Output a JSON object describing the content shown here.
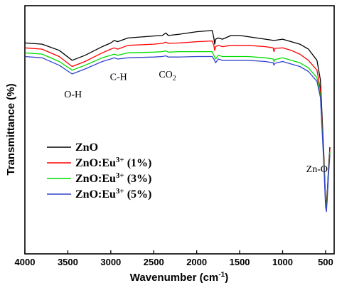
{
  "chart_data": {
    "type": "line",
    "xlabel": "Wavenumber (cm",
    "xlabel_sup": "-1",
    "xlabel_tail": ")",
    "ylabel": "Transmittance (%)",
    "x_reversed": true,
    "xlim": [
      4000,
      400
    ],
    "ylim": [
      0,
      100
    ],
    "xticks": [
      4000,
      3500,
      3000,
      2500,
      2000,
      1500,
      1000,
      500
    ],
    "y_tick_labels": false,
    "grid": false,
    "legend_position": "left-middle",
    "annotations": [
      {
        "text": "O-H",
        "x": 3440,
        "y": 63
      },
      {
        "text": "C-H",
        "x": 2910,
        "y": 70
      },
      {
        "text": "CO",
        "sub": "2",
        "x": 2340,
        "y": 71
      },
      {
        "text": "Zn-O",
        "x": 600,
        "y": 33
      }
    ],
    "series": [
      {
        "name": "ZnO",
        "legend_base": "ZnO",
        "legend_sup": "",
        "legend_tail": "",
        "color": "#000000",
        "points": [
          [
            4000,
            85
          ],
          [
            3800,
            84.5
          ],
          [
            3600,
            82
          ],
          [
            3450,
            78
          ],
          [
            3300,
            80
          ],
          [
            3100,
            83.5
          ],
          [
            3000,
            85
          ],
          [
            2960,
            86
          ],
          [
            2920,
            85.5
          ],
          [
            2800,
            87
          ],
          [
            2500,
            87.8
          ],
          [
            2400,
            88
          ],
          [
            2360,
            89
          ],
          [
            2330,
            88
          ],
          [
            2200,
            88.5
          ],
          [
            2000,
            89.5
          ],
          [
            1820,
            90
          ],
          [
            1800,
            87
          ],
          [
            1790,
            84.5
          ],
          [
            1780,
            86.5
          ],
          [
            1750,
            87
          ],
          [
            1700,
            86.5
          ],
          [
            1600,
            88
          ],
          [
            1500,
            88
          ],
          [
            1400,
            87.5
          ],
          [
            1200,
            86.5
          ],
          [
            1100,
            86
          ],
          [
            1000,
            86.5
          ],
          [
            900,
            85.5
          ],
          [
            800,
            84.5
          ],
          [
            700,
            82.5
          ],
          [
            600,
            78
          ],
          [
            560,
            70
          ],
          [
            520,
            40
          ],
          [
            500,
            22
          ],
          [
            490,
            20
          ],
          [
            480,
            25
          ],
          [
            465,
            35
          ],
          [
            450,
            43
          ]
        ]
      },
      {
        "name": "ZnO:Eu3+ (1%)",
        "legend_base": "ZnO:Eu",
        "legend_sup": "3+",
        "legend_tail": " (1%)",
        "color": "#ff0000",
        "points": [
          [
            4000,
            83
          ],
          [
            3800,
            82.5
          ],
          [
            3600,
            79.5
          ],
          [
            3450,
            75.5
          ],
          [
            3300,
            77.5
          ],
          [
            3100,
            81
          ],
          [
            3000,
            82.5
          ],
          [
            2960,
            83
          ],
          [
            2920,
            82.5
          ],
          [
            2800,
            84
          ],
          [
            2500,
            84.5
          ],
          [
            2400,
            84.8
          ],
          [
            2360,
            85.3
          ],
          [
            2330,
            84.8
          ],
          [
            2200,
            85
          ],
          [
            2000,
            85.5
          ],
          [
            1820,
            85.8
          ],
          [
            1800,
            84
          ],
          [
            1790,
            82
          ],
          [
            1780,
            83.5
          ],
          [
            1750,
            84
          ],
          [
            1700,
            83.5
          ],
          [
            1600,
            84
          ],
          [
            1500,
            84
          ],
          [
            1400,
            84
          ],
          [
            1200,
            83.5
          ],
          [
            1110,
            83
          ],
          [
            1100,
            81.5
          ],
          [
            1090,
            82.8
          ],
          [
            1000,
            83
          ],
          [
            900,
            82
          ],
          [
            800,
            80.5
          ],
          [
            700,
            78
          ],
          [
            600,
            74
          ],
          [
            560,
            66
          ],
          [
            520,
            38
          ],
          [
            500,
            21
          ],
          [
            490,
            19
          ],
          [
            480,
            24
          ],
          [
            465,
            34
          ],
          [
            450,
            42
          ]
        ]
      },
      {
        "name": "ZnO:Eu3+ (3%)",
        "legend_base": "ZnO:Eu",
        "legend_sup": "3+",
        "legend_tail": " (3%)",
        "color": "#00dd00",
        "points": [
          [
            4000,
            81
          ],
          [
            3800,
            80.5
          ],
          [
            3600,
            77.5
          ],
          [
            3450,
            74
          ],
          [
            3300,
            76
          ],
          [
            3100,
            79
          ],
          [
            3000,
            80
          ],
          [
            2960,
            80.5
          ],
          [
            2920,
            80
          ],
          [
            2800,
            81
          ],
          [
            2500,
            81.3
          ],
          [
            2400,
            81.5
          ],
          [
            2360,
            81.8
          ],
          [
            2330,
            81.3
          ],
          [
            2200,
            81.5
          ],
          [
            2000,
            81.5
          ],
          [
            1820,
            81.5
          ],
          [
            1800,
            80
          ],
          [
            1780,
            78.5
          ],
          [
            1760,
            79.5
          ],
          [
            1750,
            80
          ],
          [
            1700,
            79.5
          ],
          [
            1600,
            79.5
          ],
          [
            1500,
            79.5
          ],
          [
            1400,
            79.5
          ],
          [
            1200,
            79
          ],
          [
            1110,
            78.5
          ],
          [
            1100,
            77.5
          ],
          [
            1090,
            78.3
          ],
          [
            1000,
            79
          ],
          [
            900,
            78
          ],
          [
            800,
            77
          ],
          [
            700,
            75
          ],
          [
            600,
            71
          ],
          [
            560,
            64
          ],
          [
            520,
            37
          ],
          [
            500,
            20
          ],
          [
            490,
            18
          ],
          [
            480,
            23
          ],
          [
            465,
            33
          ],
          [
            450,
            41
          ]
        ]
      },
      {
        "name": "ZnO:Eu3+ (5%)",
        "legend_base": "ZnO:Eu",
        "legend_sup": "3+",
        "legend_tail": " (5%)",
        "color": "#3344cc",
        "points": [
          [
            4000,
            79.5
          ],
          [
            3800,
            79
          ],
          [
            3600,
            76
          ],
          [
            3450,
            72.5
          ],
          [
            3300,
            74.5
          ],
          [
            3100,
            77.5
          ],
          [
            3000,
            78.5
          ],
          [
            2960,
            79
          ],
          [
            2920,
            78.5
          ],
          [
            2800,
            79
          ],
          [
            2500,
            79.3
          ],
          [
            2400,
            79.5
          ],
          [
            2360,
            79.8
          ],
          [
            2330,
            79.3
          ],
          [
            2200,
            79.3
          ],
          [
            2000,
            79.5
          ],
          [
            1820,
            79.5
          ],
          [
            1800,
            78.5
          ],
          [
            1780,
            77
          ],
          [
            1760,
            78
          ],
          [
            1750,
            78.5
          ],
          [
            1700,
            78
          ],
          [
            1600,
            78
          ],
          [
            1500,
            78
          ],
          [
            1400,
            78
          ],
          [
            1200,
            77.5
          ],
          [
            1110,
            77
          ],
          [
            1100,
            76
          ],
          [
            1090,
            76.8
          ],
          [
            1000,
            77.5
          ],
          [
            900,
            76.5
          ],
          [
            800,
            75.5
          ],
          [
            700,
            73.5
          ],
          [
            600,
            69.5
          ],
          [
            560,
            63
          ],
          [
            520,
            36
          ],
          [
            500,
            19
          ],
          [
            490,
            17
          ],
          [
            480,
            22
          ],
          [
            465,
            32
          ],
          [
            450,
            40
          ]
        ]
      }
    ]
  }
}
